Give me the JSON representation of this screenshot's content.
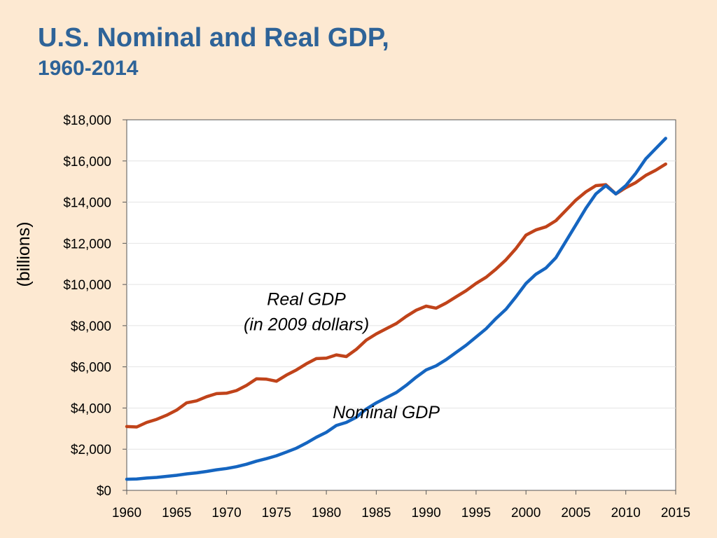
{
  "title": {
    "line1": "U.S. Nominal and Real GDP,",
    "line2": "1960-2014"
  },
  "chart_data": {
    "type": "line",
    "title": "U.S. Nominal and Real GDP, 1960-2014",
    "xlabel": "",
    "ylabel": "(billions)",
    "xlim": [
      1960,
      2015
    ],
    "ylim": [
      0,
      18000
    ],
    "x_ticks": [
      1960,
      1965,
      1970,
      1975,
      1980,
      1985,
      1990,
      1995,
      2000,
      2005,
      2010,
      2015
    ],
    "x_tick_labels": [
      "1960",
      "1965",
      "1970",
      "1975",
      "1980",
      "1985",
      "1990",
      "1995",
      "2000",
      "2005",
      "2010",
      "2015"
    ],
    "y_ticks": [
      0,
      2000,
      4000,
      6000,
      8000,
      10000,
      12000,
      14000,
      16000,
      18000
    ],
    "y_tick_labels": [
      "$0",
      "$2,000",
      "$4,000",
      "$6,000",
      "$8,000",
      "$10,000",
      "$12,000",
      "$14,000",
      "$16,000",
      "$18,000"
    ],
    "grid": "horizontal",
    "legend": "none",
    "series": [
      {
        "annotation": "Real GDP (in 2009 dollars)",
        "color": "#C0431A",
        "points": [
          [
            1960,
            3100
          ],
          [
            1961,
            3080
          ],
          [
            1962,
            3300
          ],
          [
            1963,
            3450
          ],
          [
            1964,
            3650
          ],
          [
            1965,
            3900
          ],
          [
            1966,
            4250
          ],
          [
            1967,
            4350
          ],
          [
            1968,
            4550
          ],
          [
            1969,
            4700
          ],
          [
            1970,
            4720
          ],
          [
            1971,
            4850
          ],
          [
            1972,
            5100
          ],
          [
            1973,
            5420
          ],
          [
            1974,
            5400
          ],
          [
            1975,
            5300
          ],
          [
            1976,
            5600
          ],
          [
            1977,
            5850
          ],
          [
            1978,
            6150
          ],
          [
            1979,
            6400
          ],
          [
            1980,
            6420
          ],
          [
            1981,
            6580
          ],
          [
            1982,
            6500
          ],
          [
            1983,
            6850
          ],
          [
            1984,
            7300
          ],
          [
            1985,
            7600
          ],
          [
            1986,
            7850
          ],
          [
            1987,
            8100
          ],
          [
            1988,
            8450
          ],
          [
            1989,
            8750
          ],
          [
            1990,
            8950
          ],
          [
            1991,
            8850
          ],
          [
            1992,
            9100
          ],
          [
            1993,
            9400
          ],
          [
            1994,
            9700
          ],
          [
            1995,
            10050
          ],
          [
            1996,
            10350
          ],
          [
            1997,
            10750
          ],
          [
            1998,
            11200
          ],
          [
            1999,
            11750
          ],
          [
            2000,
            12400
          ],
          [
            2001,
            12650
          ],
          [
            2002,
            12800
          ],
          [
            2003,
            13100
          ],
          [
            2004,
            13600
          ],
          [
            2005,
            14100
          ],
          [
            2006,
            14500
          ],
          [
            2007,
            14800
          ],
          [
            2008,
            14850
          ],
          [
            2009,
            14400
          ],
          [
            2010,
            14700
          ],
          [
            2011,
            14950
          ],
          [
            2012,
            15300
          ],
          [
            2013,
            15550
          ],
          [
            2014,
            15850
          ]
        ]
      },
      {
        "annotation": "Nominal GDP",
        "color": "#1565C0",
        "points": [
          [
            1960,
            540
          ],
          [
            1961,
            550
          ],
          [
            1962,
            600
          ],
          [
            1963,
            630
          ],
          [
            1964,
            680
          ],
          [
            1965,
            730
          ],
          [
            1966,
            800
          ],
          [
            1967,
            850
          ],
          [
            1968,
            920
          ],
          [
            1969,
            1000
          ],
          [
            1970,
            1060
          ],
          [
            1971,
            1150
          ],
          [
            1972,
            1270
          ],
          [
            1973,
            1420
          ],
          [
            1974,
            1540
          ],
          [
            1975,
            1680
          ],
          [
            1976,
            1860
          ],
          [
            1977,
            2050
          ],
          [
            1978,
            2300
          ],
          [
            1979,
            2580
          ],
          [
            1980,
            2820
          ],
          [
            1981,
            3150
          ],
          [
            1982,
            3300
          ],
          [
            1983,
            3550
          ],
          [
            1984,
            3950
          ],
          [
            1985,
            4250
          ],
          [
            1986,
            4500
          ],
          [
            1987,
            4750
          ],
          [
            1988,
            5100
          ],
          [
            1989,
            5500
          ],
          [
            1990,
            5850
          ],
          [
            1991,
            6050
          ],
          [
            1992,
            6350
          ],
          [
            1993,
            6700
          ],
          [
            1994,
            7050
          ],
          [
            1995,
            7450
          ],
          [
            1996,
            7850
          ],
          [
            1997,
            8350
          ],
          [
            1998,
            8800
          ],
          [
            1999,
            9400
          ],
          [
            2000,
            10050
          ],
          [
            2001,
            10500
          ],
          [
            2002,
            10800
          ],
          [
            2003,
            11300
          ],
          [
            2004,
            12100
          ],
          [
            2005,
            12900
          ],
          [
            2006,
            13700
          ],
          [
            2007,
            14400
          ],
          [
            2008,
            14800
          ],
          [
            2009,
            14400
          ],
          [
            2010,
            14800
          ],
          [
            2011,
            15400
          ],
          [
            2012,
            16100
          ],
          [
            2013,
            16600
          ],
          [
            2014,
            17100
          ]
        ]
      }
    ],
    "annotations": [
      {
        "text_lines": [
          "Real GDP",
          "(in 2009 dollars)"
        ],
        "x": 1978,
        "y": 9000
      },
      {
        "text_lines": [
          "Nominal GDP"
        ],
        "x": 1986,
        "y": 3500
      }
    ]
  }
}
